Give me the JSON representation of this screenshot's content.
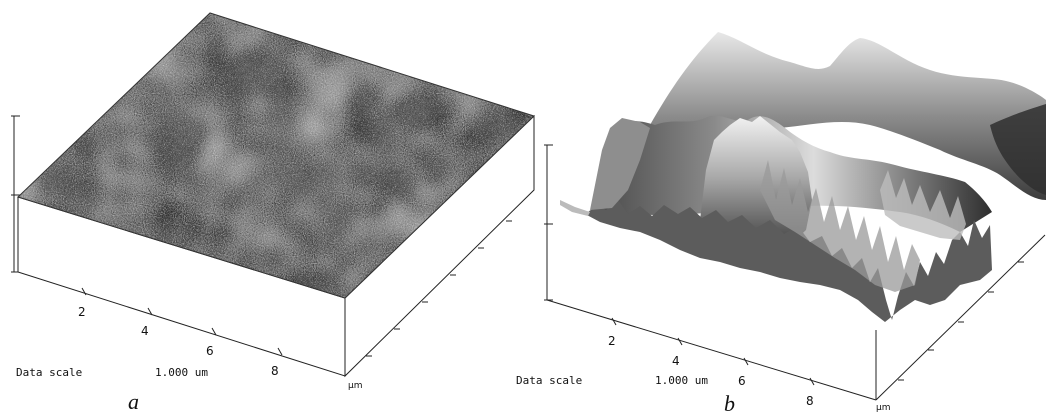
{
  "panels": [
    {
      "caption": "a",
      "data_scale_label": "Data scale",
      "data_scale_value": "1.000 um",
      "axis_ticks": [
        "2",
        "4",
        "6",
        "8"
      ],
      "axis_unit": "µm",
      "texture": "flat grainy gray surface"
    },
    {
      "caption": "b",
      "data_scale_label": "Data scale",
      "data_scale_value": "1.000 um",
      "axis_ticks": [
        "2",
        "4",
        "6",
        "8"
      ],
      "axis_unit": "µm",
      "texture": "rough 3D height map with peaks"
    }
  ],
  "colors": {
    "background": "#ffffff",
    "surface_dark": "#2a2a2a",
    "surface_light": "#d8d8d8"
  }
}
